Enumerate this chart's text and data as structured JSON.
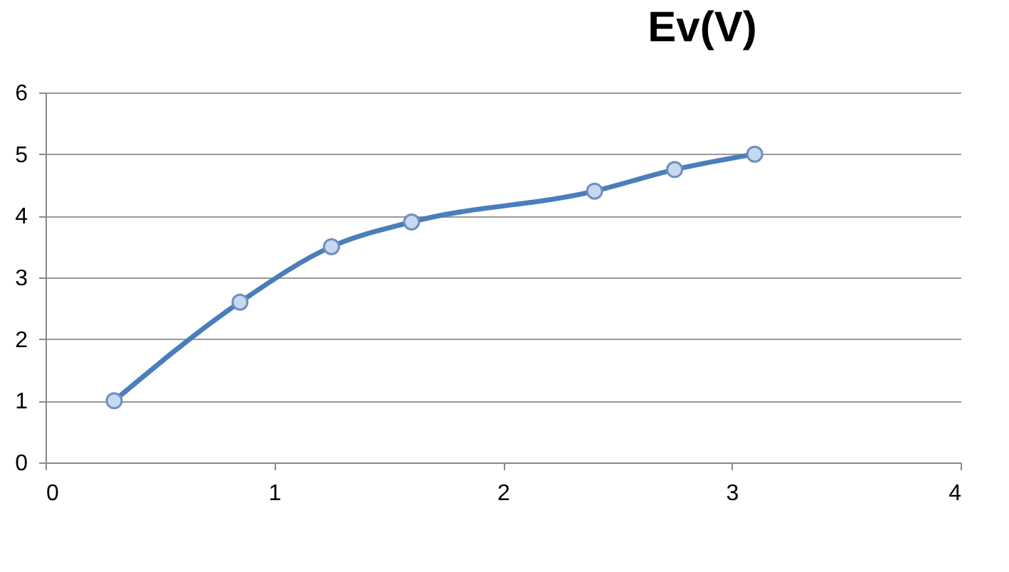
{
  "chart_data": {
    "type": "line",
    "title": "Ev(V)",
    "x": [
      0.3,
      0.85,
      1.25,
      1.6,
      2.4,
      2.75,
      3.1
    ],
    "series": [
      {
        "color": "#4a7ebb",
        "values": [
          1.0,
          2.6,
          3.5,
          3.9,
          4.4,
          4.75,
          5.0
        ]
      }
    ],
    "xlim": [
      0,
      4
    ],
    "xticks": [
      0,
      1,
      2,
      3,
      4
    ],
    "ylim": [
      0,
      6
    ],
    "yticks": [
      0,
      1,
      2,
      3,
      4,
      5,
      6
    ],
    "grid": "y",
    "marker": "circle",
    "line_style": "solid"
  }
}
